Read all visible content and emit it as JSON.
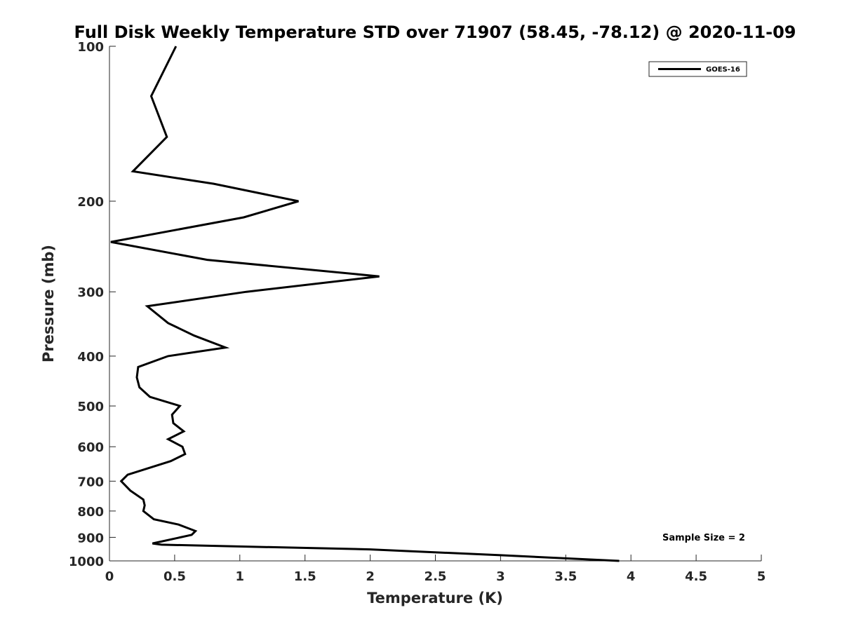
{
  "chart_data": {
    "type": "line",
    "title": "Full Disk Weekly Temperature STD over 71907 (58.45, -78.12) @ 2020-11-09",
    "xlabel": "Temperature (K)",
    "ylabel": "Pressure (mb)",
    "xlim": [
      0,
      5
    ],
    "ylim": [
      100,
      1000
    ],
    "y_scale": "log",
    "y_reversed": true,
    "x_ticks": [
      "0",
      "0.5",
      "1",
      "1.5",
      "2",
      "2.5",
      "3",
      "3.5",
      "4",
      "4.5",
      "5"
    ],
    "y_ticks": [
      "100",
      "200",
      "300",
      "400",
      "500",
      "600",
      "700",
      "800",
      "900",
      "1000"
    ],
    "grid": false,
    "legend_position": "top-right",
    "annotation": "Sample Size = 2",
    "series": [
      {
        "name": "GOES-16",
        "color": "#000000",
        "points": [
          [
            0.51,
            100
          ],
          [
            0.32,
            125
          ],
          [
            0.44,
            150
          ],
          [
            0.18,
            175
          ],
          [
            0.8,
            185
          ],
          [
            1.45,
            200
          ],
          [
            1.03,
            215
          ],
          [
            0.01,
            240
          ],
          [
            0.75,
            260
          ],
          [
            2.07,
            280
          ],
          [
            1.05,
            300
          ],
          [
            0.29,
            320
          ],
          [
            0.45,
            345
          ],
          [
            0.65,
            365
          ],
          [
            0.89,
            385
          ],
          [
            0.45,
            400
          ],
          [
            0.22,
            420
          ],
          [
            0.21,
            440
          ],
          [
            0.23,
            460
          ],
          [
            0.31,
            480
          ],
          [
            0.54,
            500
          ],
          [
            0.48,
            520
          ],
          [
            0.49,
            540
          ],
          [
            0.57,
            560
          ],
          [
            0.45,
            580
          ],
          [
            0.56,
            600
          ],
          [
            0.58,
            620
          ],
          [
            0.47,
            640
          ],
          [
            0.14,
            680
          ],
          [
            0.09,
            700
          ],
          [
            0.16,
            730
          ],
          [
            0.26,
            760
          ],
          [
            0.27,
            780
          ],
          [
            0.26,
            800
          ],
          [
            0.34,
            830
          ],
          [
            0.53,
            850
          ],
          [
            0.66,
            875
          ],
          [
            0.63,
            890
          ],
          [
            0.33,
            925
          ],
          [
            0.4,
            930
          ],
          [
            2.0,
            950
          ],
          [
            3.0,
            975
          ],
          [
            3.91,
            1000
          ]
        ]
      }
    ]
  }
}
